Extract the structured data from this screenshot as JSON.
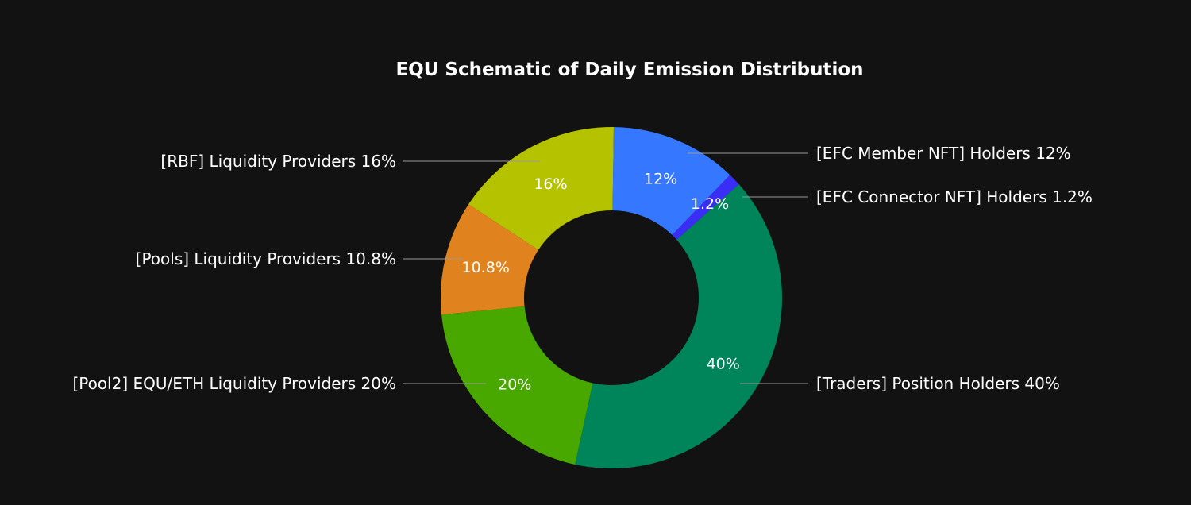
{
  "chart_data": {
    "type": "pie",
    "variant": "donut",
    "title": "EQU Schematic of Daily Emission Distribution",
    "background": "#121212",
    "label_separator": "  ",
    "slices": [
      {
        "label": "[EFC Connector NFT] Holders",
        "value": 1.2,
        "display": "1.2%",
        "color": "#3a2df5"
      },
      {
        "label": "[Traders] Position Holders",
        "value": 40,
        "display": "40%",
        "color": "#00845a"
      },
      {
        "label": "[Pool2] EQU/ETH Liquidity Providers",
        "value": 20,
        "display": "20%",
        "color": "#48a800"
      },
      {
        "label": "[Pools] Liquidity Providers",
        "value": 10.8,
        "display": "10.8%",
        "color": "#e0821e"
      },
      {
        "label": "[RBF] Liquidity Providers",
        "value": 16,
        "display": "16%",
        "color": "#b5c200"
      },
      {
        "label": "[EFC Member NFT] Holders",
        "value": 12,
        "display": "12%",
        "color": "#3578ff"
      }
    ]
  }
}
